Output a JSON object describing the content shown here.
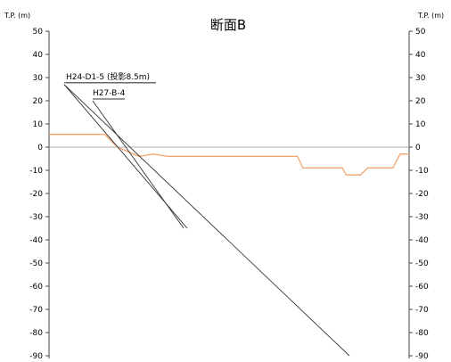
{
  "title": "断面B",
  "left_axis_label": "T.P. (m)",
  "right_axis_label": "T.P. (m)",
  "y_ticks": [
    "50",
    "40",
    "30",
    "20",
    "10",
    "0",
    "-10",
    "-20",
    "-30",
    "-40",
    "-50",
    "-60",
    "-70",
    "-80",
    "-90"
  ],
  "boreholes": [
    {
      "label": "H24-D1-5 (投影8.5m)",
      "top_elevation": 27,
      "bottom_elevation": -90
    },
    {
      "label": "H27-B-4",
      "top_elevation": 20,
      "bottom_elevation": -35
    }
  ],
  "colors": {
    "ground_line": "#f4a46b",
    "borehole_line": "#333333",
    "axis": "#444444",
    "zero_line": "#999999"
  },
  "ground_profile": [
    [
      0,
      5.5
    ],
    [
      0.155,
      5.5
    ],
    [
      0.19,
      0
    ],
    [
      0.25,
      -4
    ],
    [
      0.29,
      -3
    ],
    [
      0.33,
      -4
    ],
    [
      0.69,
      -4
    ],
    [
      0.705,
      -9
    ],
    [
      0.815,
      -9
    ],
    [
      0.825,
      -12
    ],
    [
      0.865,
      -12
    ],
    [
      0.885,
      -9
    ],
    [
      0.955,
      -9
    ],
    [
      0.975,
      -3
    ],
    [
      1.0,
      -3
    ]
  ]
}
